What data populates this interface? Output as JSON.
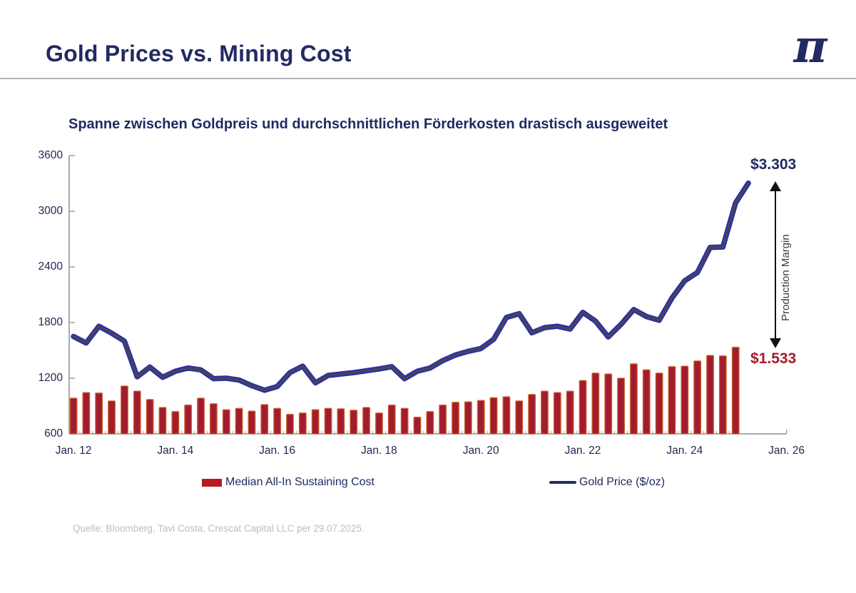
{
  "header": {
    "title": "Gold Prices vs. Mining Cost",
    "logo_glyph": "π"
  },
  "chart": {
    "subtitle": "Spanne zwischen Goldpreis und durchschnittlichen Förderkosten drastisch ausgeweitet",
    "source": "Quelle: Bloomberg, Tavi Costa, Crescat Capital LLC per 29.07.2025.",
    "legend": [
      {
        "label": "Median All-In Sustaining Cost",
        "type": "bar",
        "color": "#B51A23"
      },
      {
        "label": "Gold Price ($/oz)",
        "type": "line",
        "color": "#232A63"
      }
    ]
  },
  "chart_data": {
    "type": "combo-bar-line",
    "x_frequency": "quarterly",
    "xticks": [
      "Jan. 12",
      "Jan. 14",
      "Jan. 16",
      "Jan. 18",
      "Jan. 20",
      "Jan. 22",
      "Jan. 24",
      "Jan. 26"
    ],
    "yticks": [
      600,
      1200,
      1800,
      2400,
      3000,
      3600
    ],
    "ylim": [
      600,
      3600
    ],
    "grid": false,
    "legend_position": "bottom",
    "series": [
      {
        "name": "Median All-In Sustaining Cost",
        "type": "bar",
        "values": [
          985,
          1045,
          1040,
          955,
          1115,
          1060,
          970,
          885,
          840,
          910,
          985,
          925,
          860,
          875,
          845,
          915,
          875,
          810,
          825,
          860,
          875,
          870,
          855,
          885,
          825,
          910,
          875,
          780,
          840,
          910,
          940,
          945,
          960,
          990,
          1000,
          955,
          1025,
          1060,
          1045,
          1060,
          1175,
          1255,
          1245,
          1200,
          1355,
          1290,
          1255,
          1325,
          1330,
          1385,
          1445,
          1440,
          1533
        ]
      },
      {
        "name": "Gold Price ($/oz)",
        "type": "line",
        "values": [
          1650,
          1580,
          1760,
          1685,
          1600,
          1215,
          1320,
          1210,
          1275,
          1310,
          1290,
          1195,
          1200,
          1180,
          1120,
          1070,
          1110,
          1260,
          1330,
          1150,
          1230,
          1245,
          1260,
          1280,
          1300,
          1325,
          1195,
          1275,
          1310,
          1390,
          1450,
          1490,
          1520,
          1620,
          1855,
          1895,
          1690,
          1745,
          1760,
          1730,
          1910,
          1815,
          1645,
          1780,
          1940,
          1865,
          1825,
          2065,
          2250,
          2340,
          2610,
          2615,
          3090,
          3303
        ]
      }
    ],
    "annotations": [
      {
        "text": "$3.303",
        "color": "#222A63"
      },
      {
        "text": "$1.533",
        "color": "#A21C2E"
      },
      {
        "text": "Production Margin",
        "color": "#3C3C3C"
      }
    ]
  },
  "colors": {
    "accent_navy": "#222A63",
    "bar_red": "#A21C2E",
    "bar_edge": "#C9612E",
    "line_outer": "#2B2EA6",
    "line_inner": "#414463",
    "axis_gray": "#8F8F8F",
    "tick_gray": "#9A9A9A"
  }
}
